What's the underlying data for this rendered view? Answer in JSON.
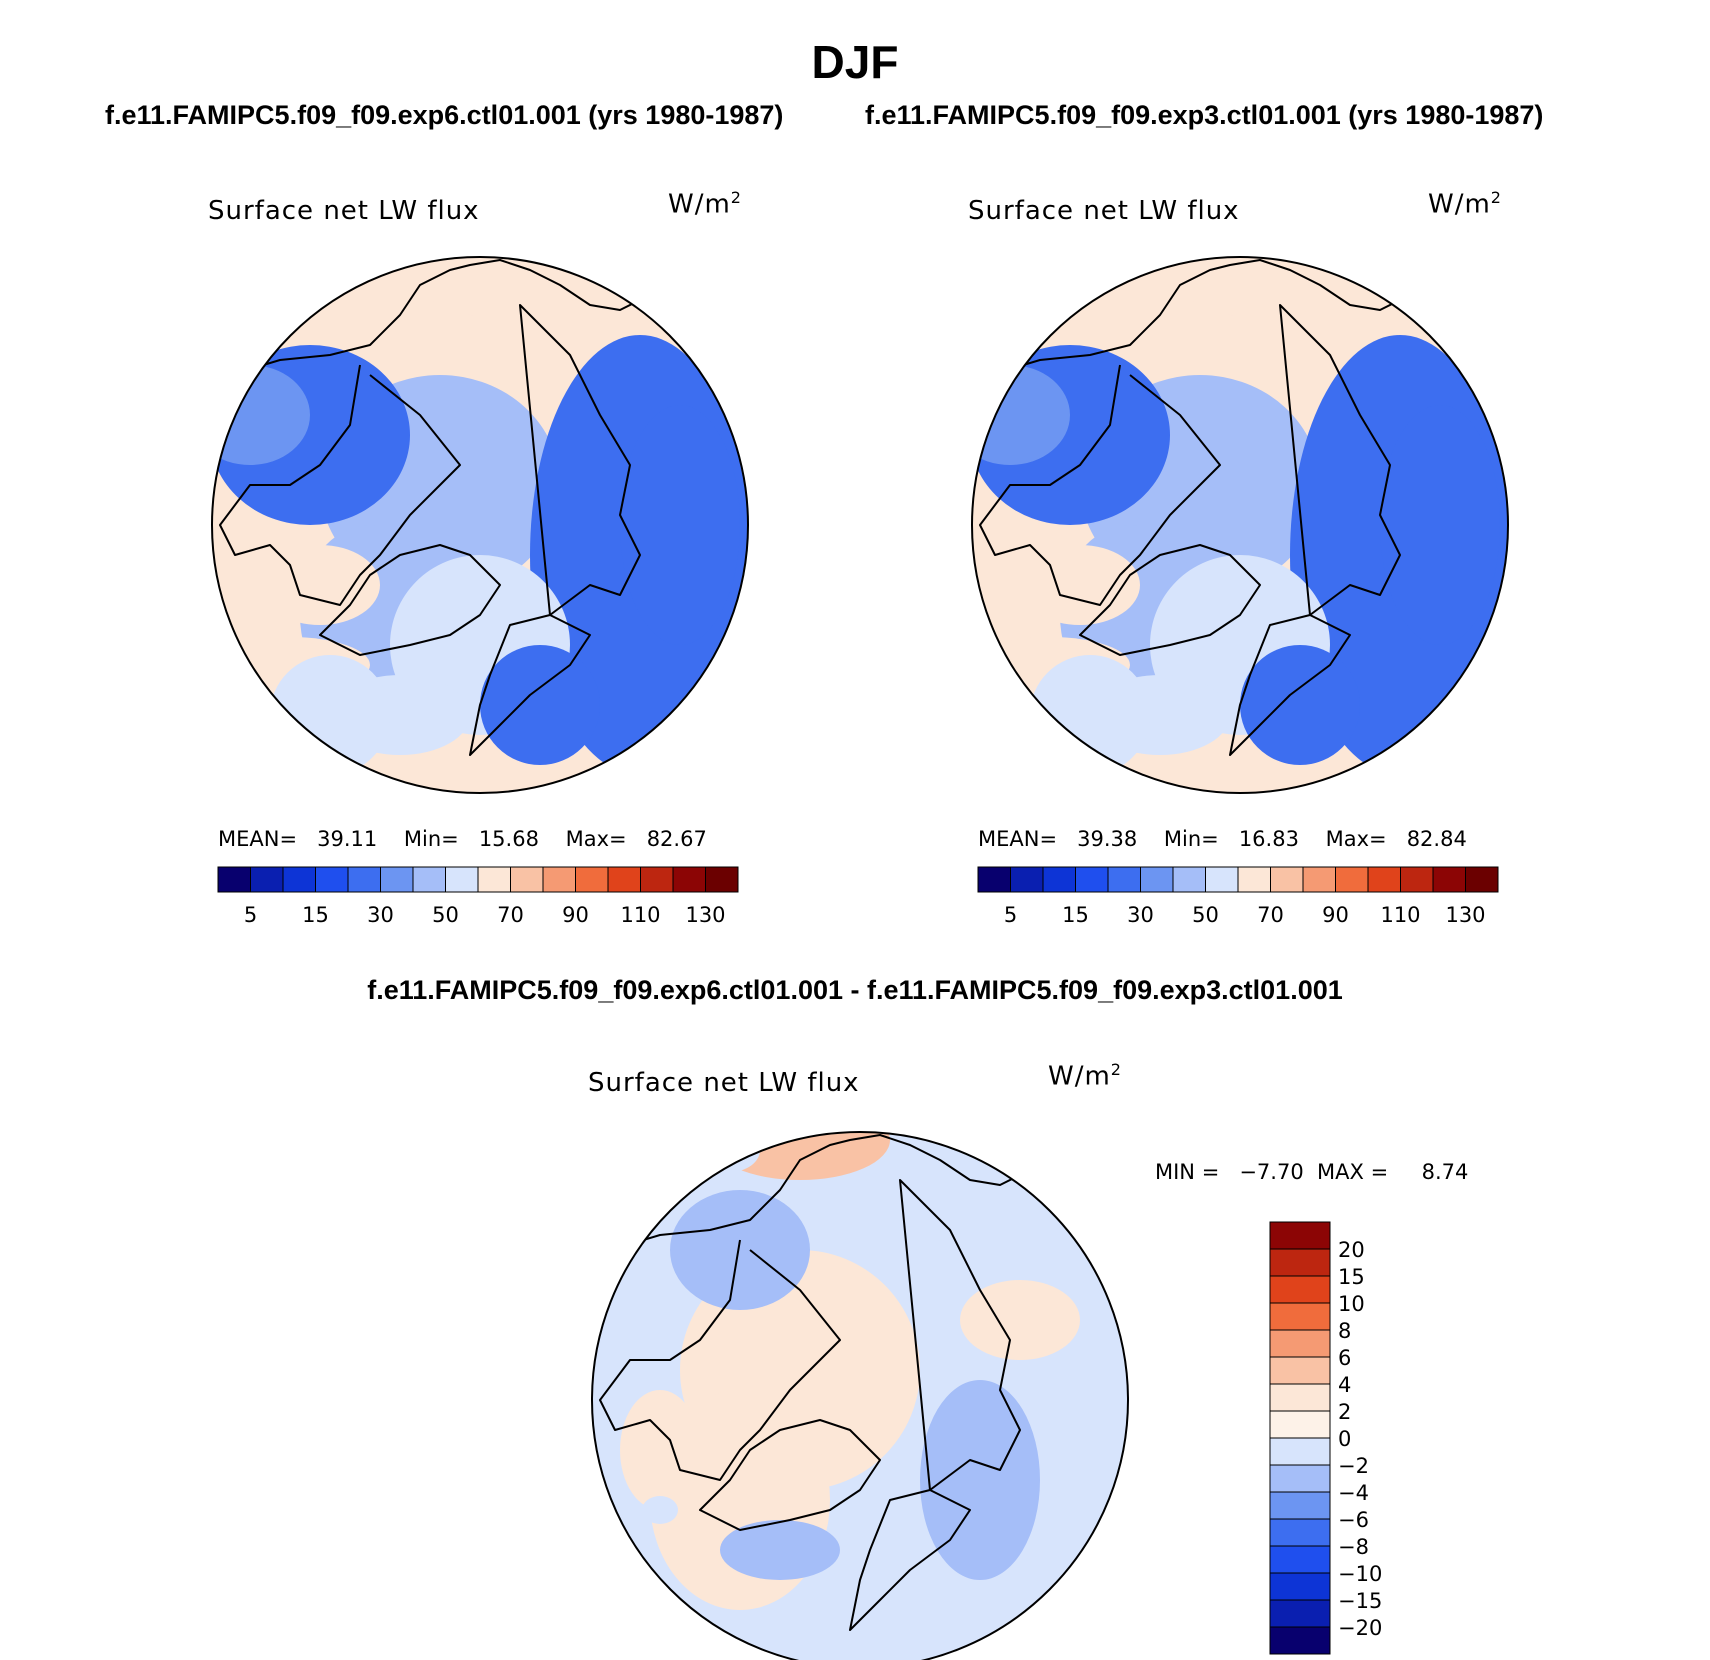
{
  "figure": {
    "title": "DJF",
    "case1_title": "f.e11.FAMIPC5.f09_f09.exp6.ctl01.001 (yrs 1980-1987)",
    "case2_title": "f.e11.FAMIPC5.f09_f09.exp3.ctl01.001 (yrs 1980-1987)",
    "diff_title": "f.e11.FAMIPC5.f09_f09.exp6.ctl01.001 - f.e11.FAMIPC5.f09_f09.exp3.ctl01.001"
  },
  "colors": {
    "coastline": "#000000",
    "land_overlay": "#5a82e0",
    "ocean_overlay": "#e8eefc"
  },
  "chart_data": [
    {
      "type": "heatmap",
      "projection": "north-polar-stereographic",
      "variable": "Surface net LW flux",
      "units": "W/m",
      "units_sup": "2",
      "stats": {
        "mean_label": "MEAN=",
        "mean": "39.11",
        "min_label": "Min=",
        "min": "15.68",
        "max_label": "Max=",
        "max": "82.67"
      },
      "colorbar": {
        "orientation": "horizontal",
        "tick_labels": [
          "5",
          "15",
          "30",
          "50",
          "70",
          "90",
          "110",
          "130"
        ],
        "levels": [
          5,
          10,
          15,
          20,
          30,
          40,
          50,
          60,
          70,
          80,
          90,
          100,
          110,
          120,
          130
        ],
        "colors": [
          "#08006e",
          "#0a1fb0",
          "#0d34d6",
          "#1f4fee",
          "#3d6ef0",
          "#6c95f2",
          "#a5bef8",
          "#d7e4fc",
          "#fce7d7",
          "#f9c2a5",
          "#f59a73",
          "#f06c3c",
          "#e0431b",
          "#bd2610",
          "#8c0505",
          "#6b0000"
        ]
      },
      "dominant_colors": [
        "#a5bef8",
        "#6c95f2",
        "#3d6ef0",
        "#d7e4fc",
        "#fce7d7"
      ]
    },
    {
      "type": "heatmap",
      "projection": "north-polar-stereographic",
      "variable": "Surface net LW flux",
      "units": "W/m",
      "units_sup": "2",
      "stats": {
        "mean_label": "MEAN=",
        "mean": "39.38",
        "min_label": "Min=",
        "min": "16.83",
        "max_label": "Max=",
        "max": "82.84"
      },
      "colorbar": {
        "orientation": "horizontal",
        "tick_labels": [
          "5",
          "15",
          "30",
          "50",
          "70",
          "90",
          "110",
          "130"
        ],
        "levels": [
          5,
          10,
          15,
          20,
          30,
          40,
          50,
          60,
          70,
          80,
          90,
          100,
          110,
          120,
          130
        ],
        "colors": [
          "#08006e",
          "#0a1fb0",
          "#0d34d6",
          "#1f4fee",
          "#3d6ef0",
          "#6c95f2",
          "#a5bef8",
          "#d7e4fc",
          "#fce7d7",
          "#f9c2a5",
          "#f59a73",
          "#f06c3c",
          "#e0431b",
          "#bd2610",
          "#8c0505",
          "#6b0000"
        ]
      },
      "dominant_colors": [
        "#a5bef8",
        "#6c95f2",
        "#3d6ef0",
        "#d7e4fc",
        "#fce7d7"
      ]
    },
    {
      "type": "heatmap",
      "projection": "north-polar-stereographic",
      "variable": "Surface net LW flux",
      "units": "W/m",
      "units_sup": "2",
      "stats": {
        "min_label": "MIN =",
        "min": "−7.70",
        "max_label": "MAX =",
        "max": "8.74"
      },
      "colorbar": {
        "orientation": "vertical",
        "tick_labels": [
          "20",
          "15",
          "10",
          "8",
          "6",
          "4",
          "2",
          "0",
          "−2",
          "−4",
          "−6",
          "−8",
          "−10",
          "−15",
          "−20"
        ],
        "colors_top_to_bottom": [
          "#8c0505",
          "#bd2610",
          "#e0431b",
          "#f06c3c",
          "#f59a73",
          "#f9c2a5",
          "#fce7d7",
          "#fdf2e8",
          "#d7e4fc",
          "#a5bef8",
          "#6c95f2",
          "#3d6ef0",
          "#1f4fee",
          "#0d34d6",
          "#0a1fb0",
          "#08006e"
        ]
      },
      "dominant_colors": [
        "#d7e4fc",
        "#fce7d7",
        "#a5bef8",
        "#f9c2a5"
      ]
    }
  ]
}
